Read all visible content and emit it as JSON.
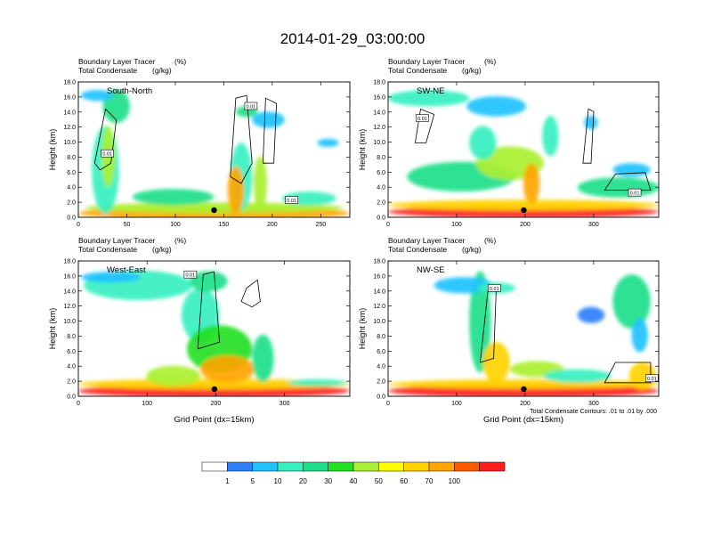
{
  "figure_title": "2014-01-29_03:00:00",
  "contour_note": "Total Condensate Contours: .01 to .01 by .000",
  "colorbar": {
    "labels": [
      "1",
      "5",
      "10",
      "20",
      "30",
      "40",
      "50",
      "60",
      "70",
      "100"
    ],
    "colors": [
      "#ffffff",
      "#2d7ff9",
      "#20c2ff",
      "#36f0c0",
      "#1fe08a",
      "#22e022",
      "#aaf032",
      "#ffff00",
      "#ffd200",
      "#ffa500",
      "#ff5a00",
      "#ff1e1e"
    ]
  },
  "chart_data": [
    {
      "type": "heatmap",
      "panel_label": "South-North",
      "subtitle_1": "Boundary Layer Tracer",
      "unit_1": "(%)",
      "subtitle_2": "Total Condensate",
      "unit_2": "(g/kg)",
      "ylabel": "Height (km)",
      "xlabel": "",
      "xlim": [
        0,
        280
      ],
      "ylim": [
        0,
        18
      ],
      "xticks": [
        "0",
        "50",
        "100",
        "150",
        "200",
        "250"
      ],
      "yticks": [
        "0.0",
        "2.0",
        "4.0",
        "6.0",
        "8.0",
        "10.0",
        "12.0",
        "14.0",
        "16.0",
        "18.0"
      ],
      "marker_x": 140,
      "contour_labels": [
        {
          "text": "0.01",
          "x": 30,
          "y": 8.5
        },
        {
          "text": "0.01",
          "x": 178,
          "y": 14.8
        },
        {
          "text": "0.01",
          "x": 220,
          "y": 2.3
        }
      ]
    },
    {
      "type": "heatmap",
      "panel_label": "SW-NE",
      "subtitle_1": "Boundary Layer Tracer",
      "unit_1": "(%)",
      "subtitle_2": "Total Condensate",
      "unit_2": "(g/kg)",
      "ylabel": "Height (km)",
      "xlabel": "",
      "xlim": [
        0,
        395
      ],
      "ylim": [
        0,
        18
      ],
      "xticks": [
        "0",
        "100",
        "200",
        "300"
      ],
      "yticks": [
        "0.0",
        "2.0",
        "4.0",
        "6.0",
        "8.0",
        "10.0",
        "12.0",
        "14.0",
        "16.0",
        "18.0"
      ],
      "marker_x": 198,
      "contour_labels": [
        {
          "text": "0.01",
          "x": 50,
          "y": 13.2
        },
        {
          "text": "0.01",
          "x": 360,
          "y": 3.3
        }
      ]
    },
    {
      "type": "heatmap",
      "panel_label": "West-East",
      "subtitle_1": "Boundary Layer Tracer",
      "unit_1": "(%)",
      "subtitle_2": "Total Condensate",
      "unit_2": "(g/kg)",
      "ylabel": "Height (km)",
      "xlabel": "Grid Point (dx=15km)",
      "xlim": [
        0,
        395
      ],
      "ylim": [
        0,
        18
      ],
      "xticks": [
        "0",
        "100",
        "200",
        "300"
      ],
      "yticks": [
        "0.0",
        "2.0",
        "4.0",
        "6.0",
        "8.0",
        "10.0",
        "12.0",
        "14.0",
        "16.0",
        "18.0"
      ],
      "marker_x": 198,
      "contour_labels": [
        {
          "text": "0.01",
          "x": 163,
          "y": 16.2
        }
      ]
    },
    {
      "type": "heatmap",
      "panel_label": "NW-SE",
      "subtitle_1": "Boundary Layer Tracer",
      "unit_1": "(%)",
      "subtitle_2": "Total Condensate",
      "unit_2": "(g/kg)",
      "ylabel": "Height (km)",
      "xlabel": "Grid Point (dx=15km)",
      "xlim": [
        0,
        395
      ],
      "ylim": [
        0,
        18
      ],
      "xticks": [
        "0",
        "100",
        "200",
        "300"
      ],
      "yticks": [
        "0.0",
        "2.0",
        "4.0",
        "6.0",
        "8.0",
        "10.0",
        "12.0",
        "14.0",
        "16.0",
        "18.0"
      ],
      "marker_x": 198,
      "contour_labels": [
        {
          "text": "0.01",
          "x": 155,
          "y": 14.4
        },
        {
          "text": "0.01",
          "x": 385,
          "y": 2.4
        }
      ]
    }
  ]
}
